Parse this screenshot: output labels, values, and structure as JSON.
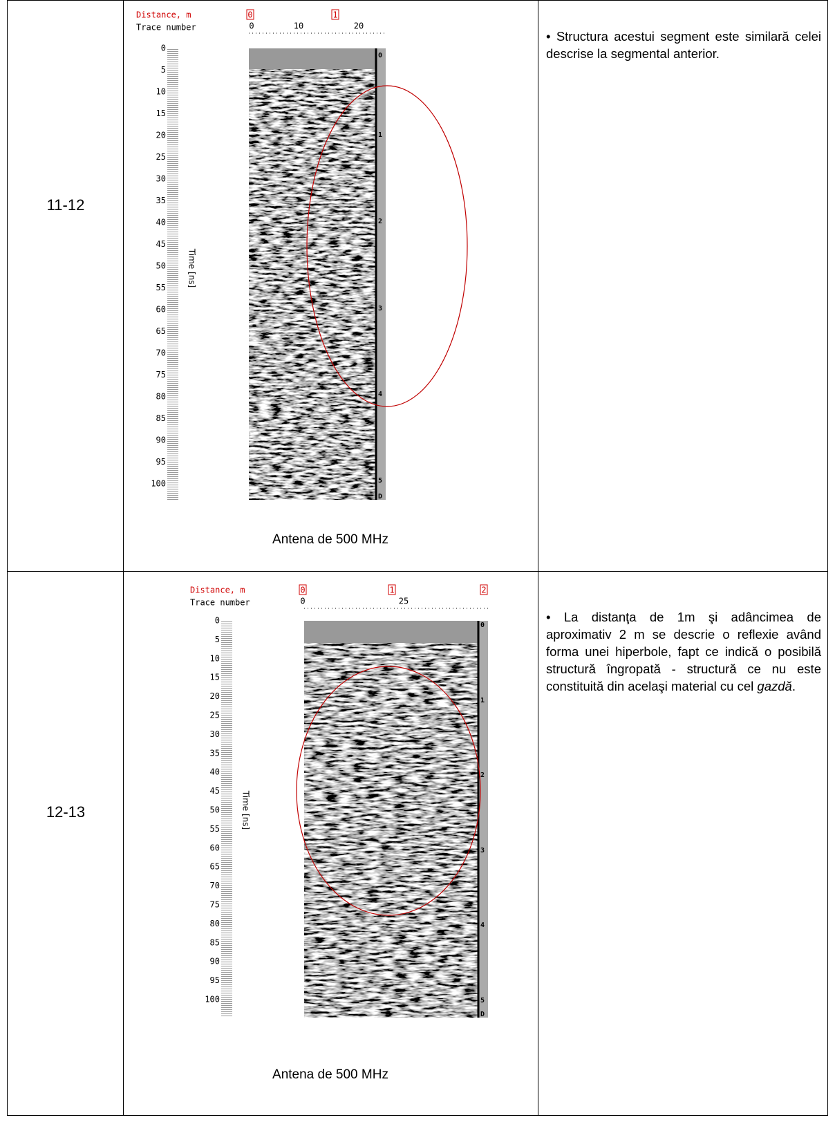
{
  "rows": [
    {
      "segment": "11-12",
      "figure": {
        "distance_label": "Distance, m",
        "distance_ticks": [
          "0",
          "1"
        ],
        "trace_label": "Trace number",
        "trace_ticks": [
          "0",
          "10",
          "20"
        ],
        "time_ticks": [
          0,
          5,
          10,
          15,
          20,
          25,
          30,
          35,
          40,
          45,
          50,
          55,
          60,
          65,
          70,
          75,
          80,
          85,
          90,
          95,
          100
        ],
        "time_label": "Time [ns]",
        "depth_ticks": [
          "0",
          "1",
          "2",
          "3",
          "4",
          "5",
          "D"
        ]
      },
      "caption": "Antena de 500 MHz",
      "text": {
        "before": "• Structura acestui segment este similară celei descrise la segmental anterior.",
        "italic": "",
        "after": ""
      }
    },
    {
      "segment": "12-13",
      "figure": {
        "distance_label": "Distance, m",
        "distance_ticks": [
          "0",
          "1",
          "2"
        ],
        "trace_label": "Trace number",
        "trace_ticks": [
          "0",
          "25"
        ],
        "time_ticks": [
          0,
          5,
          10,
          15,
          20,
          25,
          30,
          35,
          40,
          45,
          50,
          55,
          60,
          65,
          70,
          75,
          80,
          85,
          90,
          95,
          100
        ],
        "time_label": "Time [ns]",
        "depth_ticks": [
          "0",
          "1",
          "2",
          "3",
          "4",
          "5",
          "D"
        ]
      },
      "caption": "Antena de 500 MHz",
      "text": {
        "before": "• La distanţa de 1m şi adâncimea de aproximativ 2 m se descrie o reflexie având forma unei hiperbole, fapt ce indică o posibilă structură îngropată - structură ce nu este constituită din acelaşi material cu cel ",
        "italic": "gazdă",
        "after": "."
      }
    }
  ]
}
